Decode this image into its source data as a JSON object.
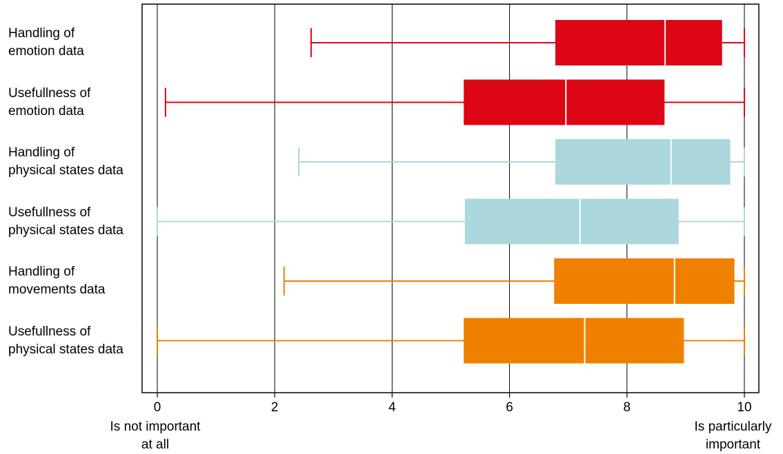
{
  "chart_data": {
    "type": "boxplot",
    "orientation": "horizontal",
    "xlim": [
      0,
      10
    ],
    "xticks": [
      "0",
      "2",
      "4",
      "6",
      "8",
      "10"
    ],
    "grid": "vertical",
    "end_labels": {
      "left": [
        "Is not important",
        "at all"
      ],
      "right": [
        "Is particularly",
        "important"
      ]
    },
    "categories": [
      {
        "label": [
          "Handling of",
          "emotion data"
        ],
        "color": "#dc0614",
        "whisker_low": 2.62,
        "q1": 6.78,
        "median": 8.65,
        "q3": 9.62,
        "whisker_high": 10.0
      },
      {
        "label": [
          "Usefullness of",
          "emotion data"
        ],
        "color": "#dc0614",
        "whisker_low": 0.14,
        "q1": 5.22,
        "median": 6.96,
        "q3": 8.64,
        "whisker_high": 10.0
      },
      {
        "label": [
          "Handling of",
          "physical states data"
        ],
        "color": "#abd7dd",
        "whisker_low": 2.41,
        "q1": 6.78,
        "median": 8.75,
        "q3": 9.76,
        "whisker_high": 10.0
      },
      {
        "label": [
          "Usefullness of",
          "physical states data"
        ],
        "color": "#abd7dd",
        "whisker_low": 0.0,
        "q1": 5.24,
        "median": 7.2,
        "q3": 8.88,
        "whisker_high": 10.0
      },
      {
        "label": [
          "Handling of",
          "movements data"
        ],
        "color": "#ef8000",
        "whisker_low": 2.16,
        "q1": 6.76,
        "median": 8.81,
        "q3": 9.83,
        "whisker_high": 10.0
      },
      {
        "label": [
          "Usefullness of",
          "physical states data"
        ],
        "color": "#ef8000",
        "whisker_low": 0.0,
        "q1": 5.22,
        "median": 7.28,
        "q3": 8.97,
        "whisker_high": 10.0
      }
    ]
  }
}
